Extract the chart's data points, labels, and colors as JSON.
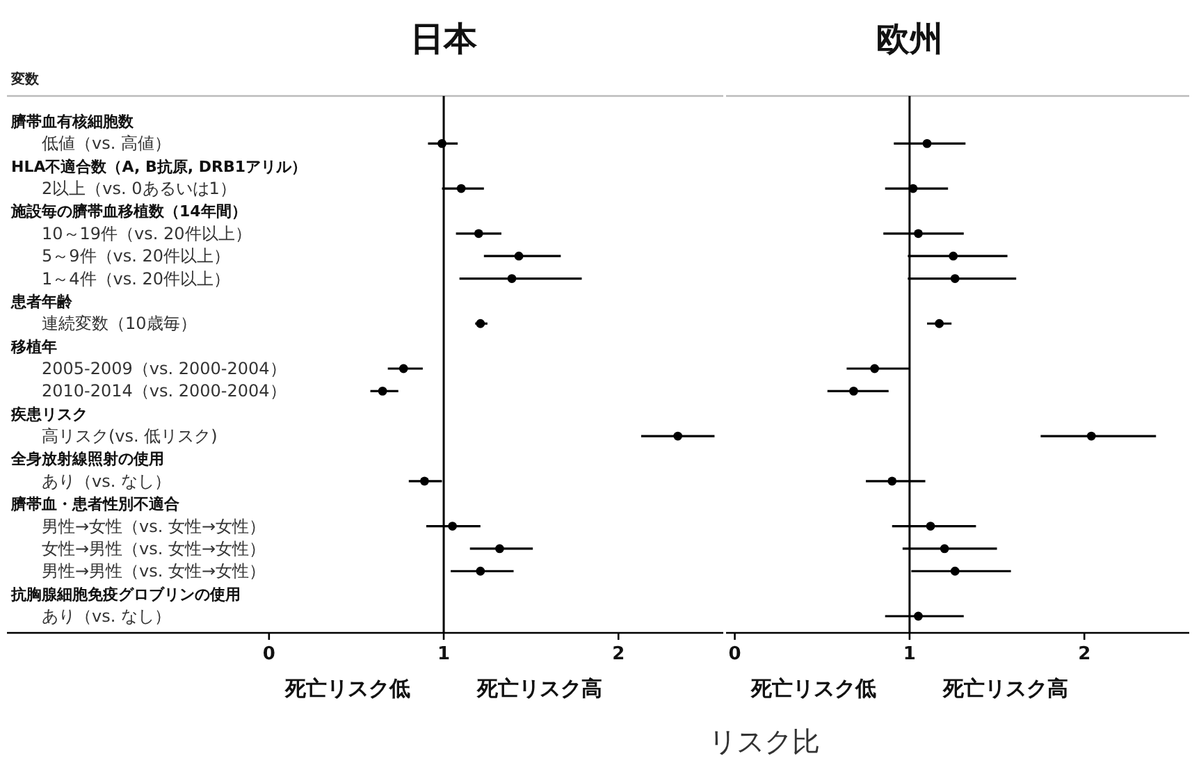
{
  "chart_data": [
    {
      "type": "scatter",
      "title": "日本",
      "orientation": "horizontal",
      "marker": "circle",
      "grid": false,
      "categories": [
        "臍帯血有核細胞数",
        "低値（vs. 高値）",
        "HLA不適合数（A, B抗原, DRB1アリル）",
        "2以上（vs. 0あるいは1）",
        "施設毎の臍帯血移植数（14年間）",
        "10～19件（vs. 20件以上）",
        "5～9件（vs. 20件以上）",
        "1～4件（vs. 20件以上）",
        "患者年齢",
        "連続変数（10歳毎）",
        "移植年",
        "2005-2009（vs. 2000-2004）",
        "2010-2014（vs. 2000-2004）",
        "疾患リスク",
        "高リスク(vs. 低リスク)",
        "全身放射線照射の使用",
        "あり（vs. なし）",
        "臍帯血・患者性別不適合",
        "男性→女性（vs. 女性→女性）",
        "女性→男性（vs. 女性→女性）",
        "男性→男性（vs. 女性→女性）",
        "抗胸腺細胞免疫グロブリンの使用",
        "あり（vs. なし）"
      ],
      "series": [
        {
          "color": "#000000",
          "values": [
            null,
            0.99,
            null,
            1.1,
            null,
            1.2,
            1.43,
            1.39,
            null,
            1.21,
            null,
            0.77,
            0.65,
            null,
            2.34,
            null,
            0.89,
            null,
            1.05,
            1.32,
            1.21,
            null,
            null
          ],
          "errors": [
            null,
            [
              0.91,
              1.08
            ],
            null,
            [
              0.99,
              1.23
            ],
            null,
            [
              1.07,
              1.33
            ],
            [
              1.23,
              1.67
            ],
            [
              1.09,
              1.79
            ],
            null,
            [
              1.18,
              1.25
            ],
            null,
            [
              0.68,
              0.88
            ],
            [
              0.58,
              0.74
            ],
            null,
            [
              2.13,
              2.55
            ],
            null,
            [
              0.8,
              0.99
            ],
            null,
            [
              0.9,
              1.21
            ],
            [
              1.15,
              1.51
            ],
            [
              1.04,
              1.4
            ],
            null,
            null
          ]
        }
      ],
      "xlim": [
        -1.5,
        2.6
      ],
      "xticks": [
        0,
        1,
        2
      ],
      "ref_lines": [
        {
          "axis": "x",
          "value": 1,
          "color": "#000000"
        }
      ],
      "annotations": [
        "変数",
        "死亡リスク低",
        "死亡リスク高"
      ]
    },
    {
      "type": "scatter",
      "title": "欧州",
      "orientation": "horizontal",
      "marker": "circle",
      "grid": false,
      "tick_labels": "x",
      "categories": [
        null,
        null,
        null,
        null,
        null,
        null,
        null,
        null,
        null,
        null,
        null,
        null,
        null,
        null,
        null,
        null,
        null,
        null,
        null,
        null,
        null,
        null,
        null
      ],
      "series": [
        {
          "color": "#000000",
          "values": [
            null,
            1.1,
            null,
            1.02,
            null,
            1.05,
            1.25,
            1.26,
            null,
            1.17,
            null,
            0.8,
            0.68,
            null,
            2.04,
            null,
            0.9,
            null,
            1.12,
            1.2,
            1.26,
            null,
            1.05
          ],
          "errors": [
            null,
            [
              0.91,
              1.32
            ],
            null,
            [
              0.86,
              1.22
            ],
            null,
            [
              0.85,
              1.31
            ],
            [
              0.99,
              1.56
            ],
            [
              0.99,
              1.61
            ],
            null,
            [
              1.1,
              1.24
            ],
            null,
            [
              0.64,
              1.0
            ],
            [
              0.53,
              0.88
            ],
            null,
            [
              1.75,
              2.41
            ],
            null,
            [
              0.75,
              1.09
            ],
            null,
            [
              0.9,
              1.38
            ],
            [
              0.96,
              1.5
            ],
            [
              1.01,
              1.58
            ],
            null,
            [
              0.86,
              1.31
            ]
          ]
        }
      ],
      "xlim": [
        -0.05,
        2.6
      ],
      "xticks": [
        0,
        1,
        2
      ],
      "ref_lines": [
        {
          "axis": "x",
          "value": 1,
          "color": "#000000"
        }
      ],
      "xlabel": "リスク比",
      "annotations": [
        "死亡リスク低",
        "死亡リスク高"
      ]
    }
  ]
}
